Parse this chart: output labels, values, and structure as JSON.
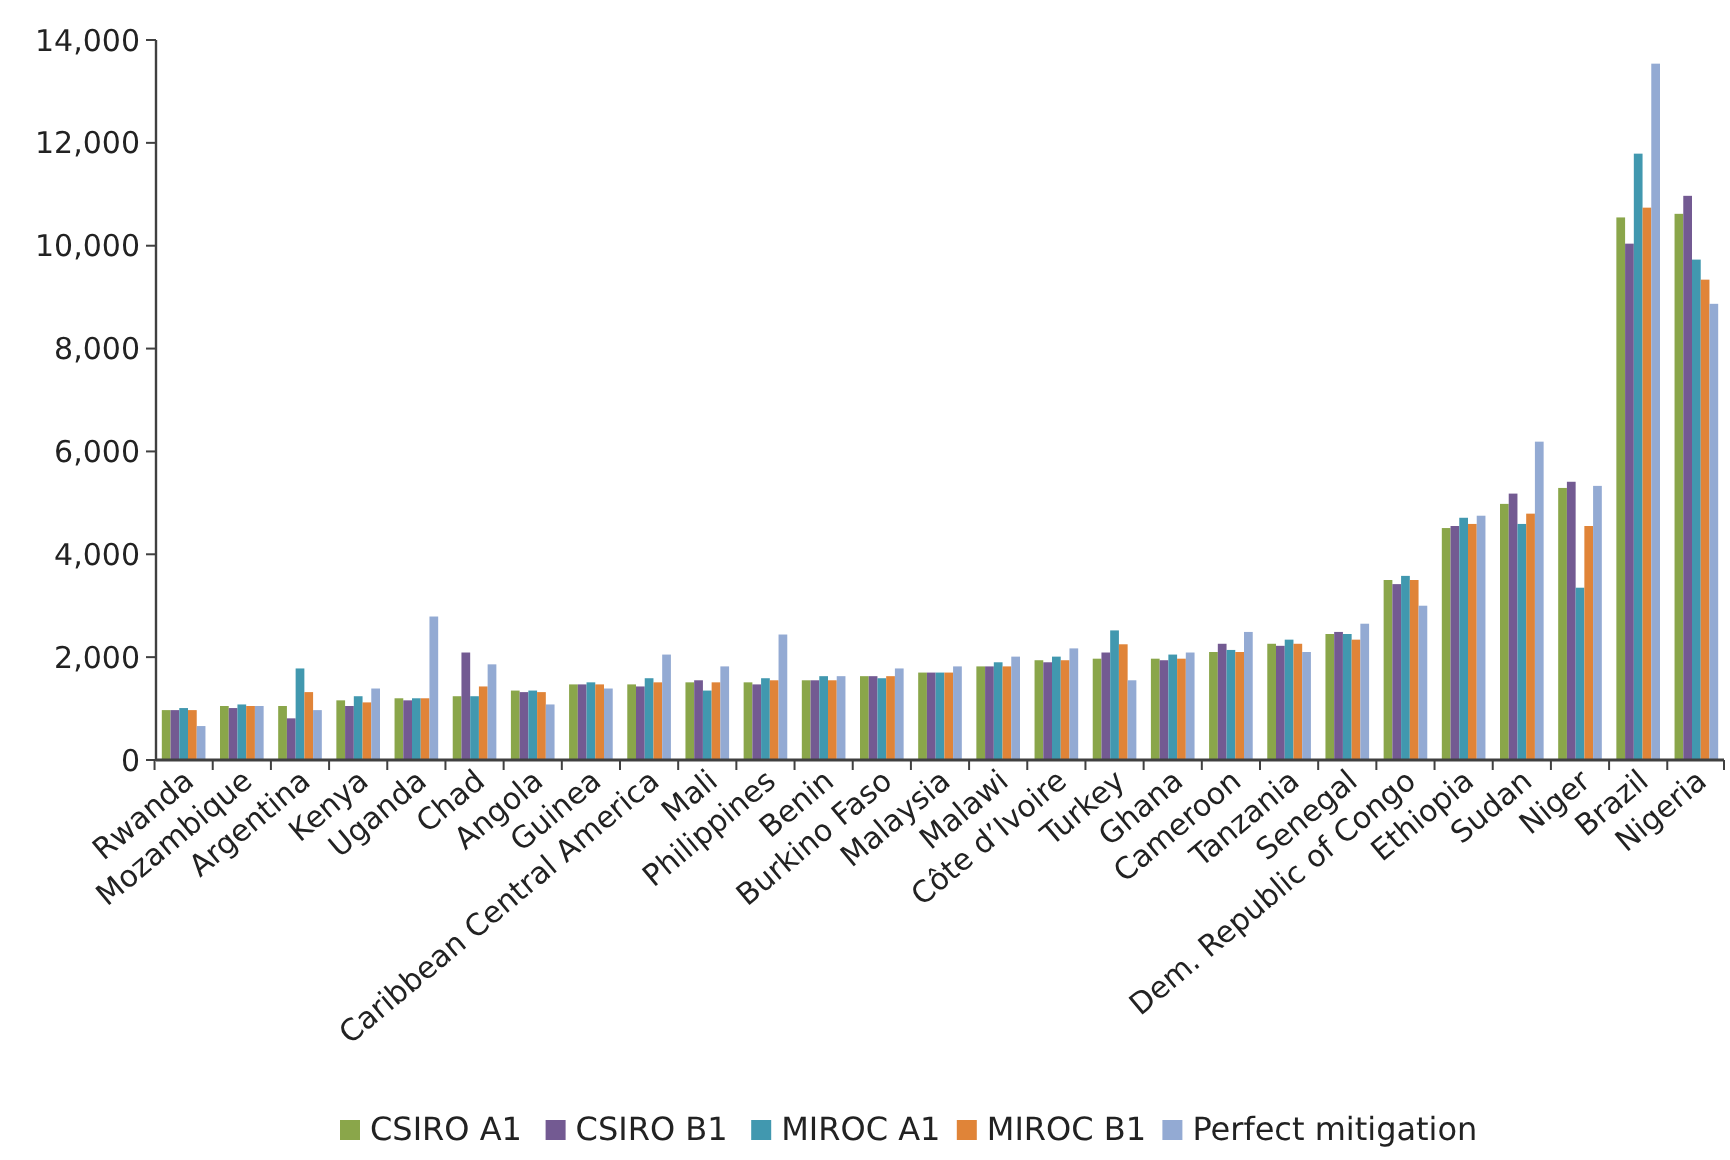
{
  "chart_data": {
    "type": "bar",
    "categories": [
      "Rwanda",
      "Mozambique",
      "Argentina",
      "Kenya",
      "Uganda",
      "Chad",
      "Angola",
      "Guinea",
      "Caribbean Central America",
      "Mali",
      "Philippines",
      "Benin",
      "Burkino Faso",
      "Malaysia",
      "Malawi",
      "Côte d’Ivoire",
      "Turkey",
      "Ghana",
      "Cameroon",
      "Tanzania",
      "Senegal",
      "Dem. Republic of Congo",
      "Ethiopia",
      "Sudan",
      "Niger",
      "Brazil",
      "Nigeria"
    ],
    "series": [
      {
        "name": "CSIRO A1",
        "color": "#8aa64a",
        "values": [
          970,
          1050,
          1050,
          1160,
          1200,
          1240,
          1350,
          1470,
          1470,
          1510,
          1510,
          1550,
          1630,
          1700,
          1820,
          1940,
          1970,
          1970,
          2100,
          2260,
          2450,
          3500,
          4510,
          4980,
          5290,
          10550,
          10620
        ]
      },
      {
        "name": "CSIRO B1",
        "color": "#735a92",
        "values": [
          970,
          1010,
          810,
          1050,
          1160,
          2090,
          1320,
          1470,
          1430,
          1550,
          1470,
          1550,
          1630,
          1700,
          1820,
          1900,
          2090,
          1940,
          2260,
          2220,
          2490,
          3420,
          4550,
          5180,
          5410,
          10040,
          10970
        ]
      },
      {
        "name": "MIROC A1",
        "color": "#4198af",
        "values": [
          1010,
          1080,
          1780,
          1240,
          1200,
          1240,
          1350,
          1510,
          1590,
          1350,
          1590,
          1630,
          1590,
          1700,
          1900,
          2010,
          2520,
          2050,
          2140,
          2340,
          2450,
          3580,
          4710,
          4590,
          3350,
          11790,
          9730
        ]
      },
      {
        "name": "MIROC B1",
        "color": "#e08438",
        "values": [
          970,
          1050,
          1320,
          1120,
          1200,
          1430,
          1320,
          1470,
          1510,
          1510,
          1550,
          1550,
          1630,
          1700,
          1820,
          1940,
          2250,
          1970,
          2100,
          2260,
          2340,
          3500,
          4590,
          4790,
          4550,
          10740,
          9340
        ]
      },
      {
        "name": "Perfect mitigation",
        "color": "#93aad3",
        "values": [
          660,
          1050,
          970,
          1390,
          2790,
          1860,
          1080,
          1390,
          2050,
          1820,
          2440,
          1630,
          1780,
          1820,
          2010,
          2170,
          1550,
          2090,
          2490,
          2100,
          2650,
          3000,
          4750,
          6190,
          5330,
          13540,
          8870
        ]
      }
    ],
    "ylim": [
      0,
      14000
    ],
    "yticks": [
      {
        "value": 0,
        "label": "0"
      },
      {
        "value": 2000,
        "label": "2,000"
      },
      {
        "value": 4000,
        "label": "4,000"
      },
      {
        "value": 6000,
        "label": "6,000"
      },
      {
        "value": 8000,
        "label": "8,000"
      },
      {
        "value": 10000,
        "label": "10,000"
      },
      {
        "value": 12000,
        "label": "12,000"
      },
      {
        "value": 14000,
        "label": "14,000"
      }
    ],
    "grid": false,
    "legend": "bottom"
  }
}
